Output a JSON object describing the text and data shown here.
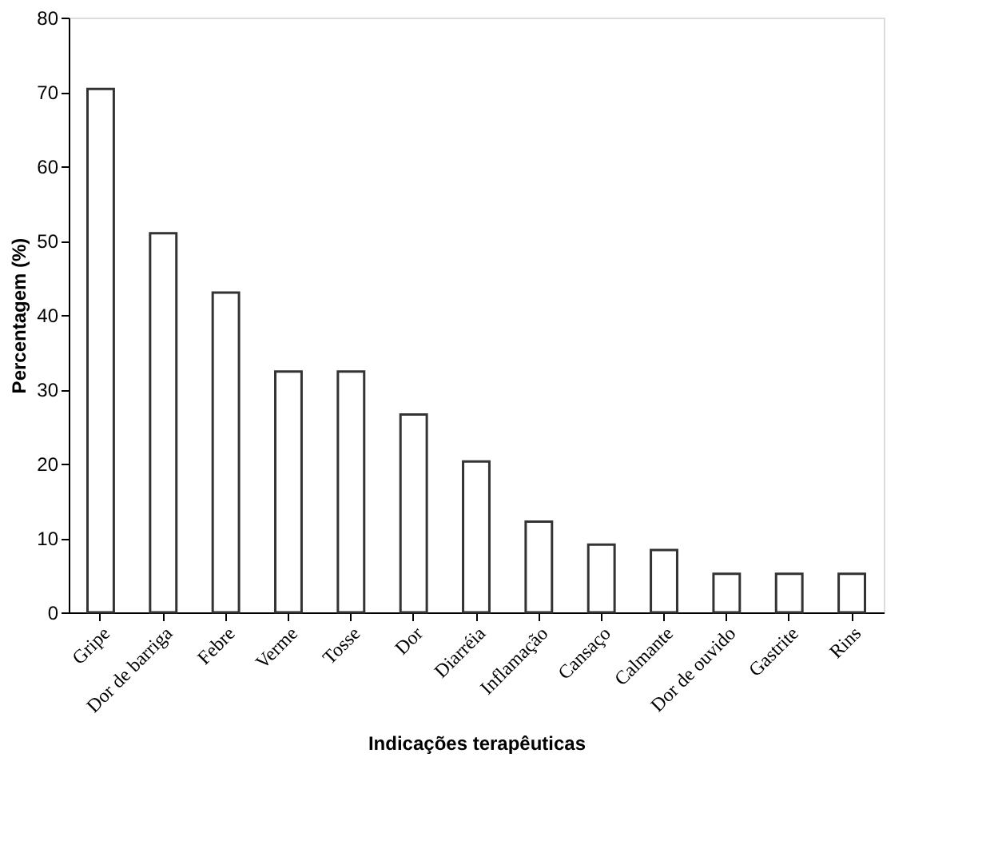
{
  "chart_data": {
    "type": "bar",
    "xlabel": "Indicações terapêuticas",
    "ylabel": "Percentagem (%)",
    "categories": [
      "Gripe",
      "Dor de barriga",
      "Febre",
      "Verme",
      "Tosse",
      "Dor",
      "Diarréia",
      "Inflamação",
      "Cansaço",
      "Calmante",
      "Dor de ouvido",
      "Gastrite",
      "Rins"
    ],
    "values": [
      70.4,
      51,
      43,
      32.4,
      32.4,
      26.6,
      20.3,
      12.2,
      9.1,
      8.4,
      5.2,
      5.2,
      5.2
    ],
    "color": "#ffffff",
    "ylim": [
      0,
      80
    ],
    "yticks": [
      0,
      10,
      20,
      30,
      40,
      50,
      60,
      70,
      80
    ],
    "grid": false
  }
}
